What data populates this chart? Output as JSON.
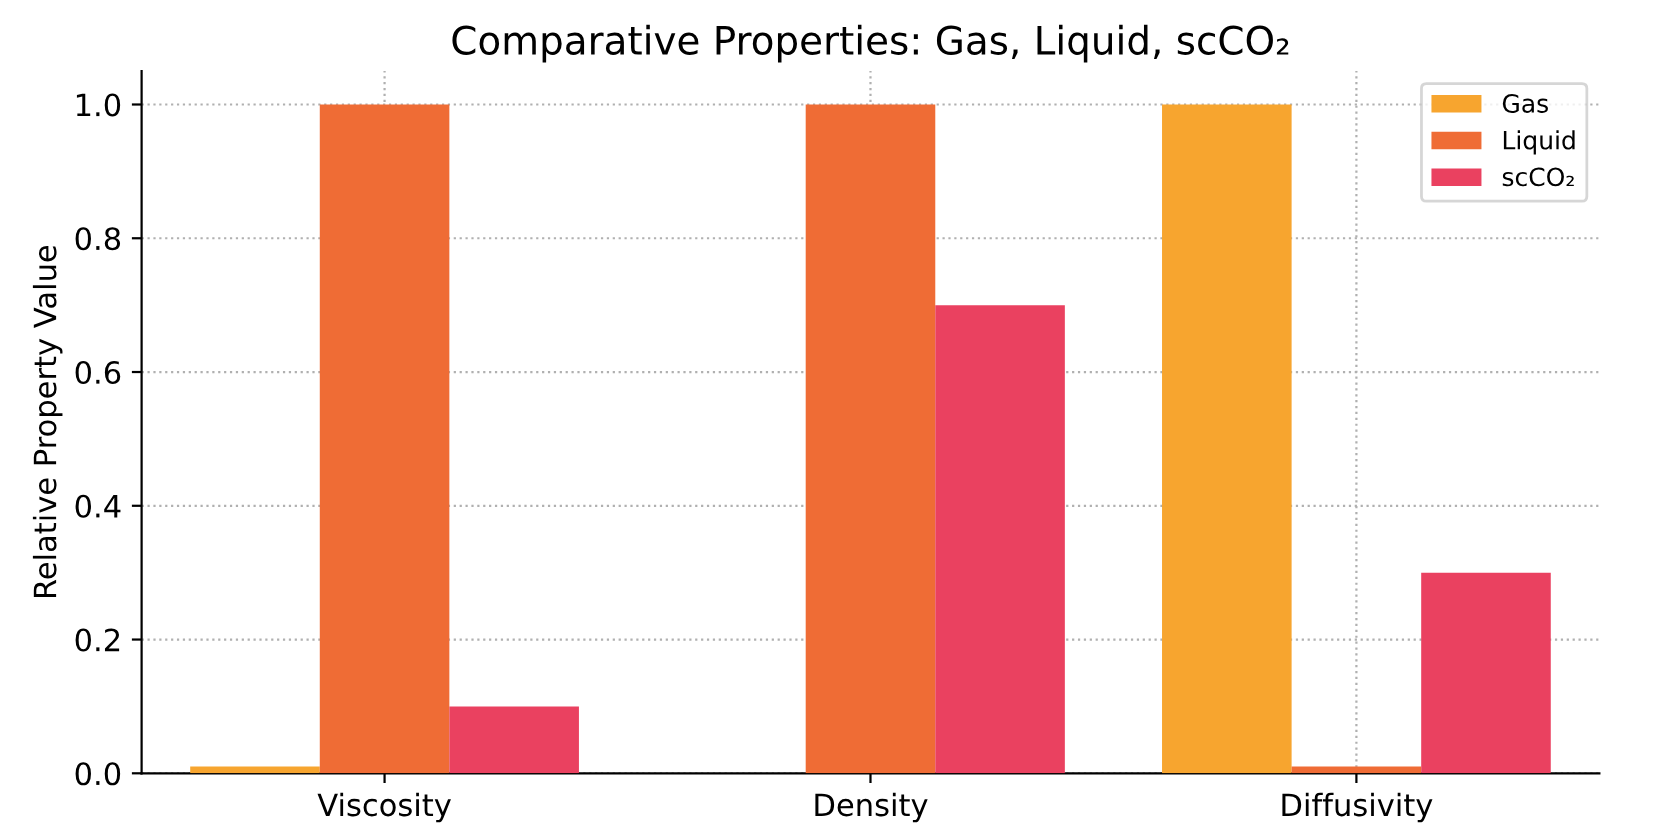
{
  "chart_data": {
    "type": "bar",
    "title": "Comparative Properties: Gas, Liquid, scCO₂",
    "ylabel": "Relative Property Value",
    "categories": [
      "Viscosity",
      "Density",
      "Diffusivity"
    ],
    "series": [
      {
        "name": "Gas",
        "color": "#f7a52f",
        "values": [
          0.01,
          0,
          1.0
        ]
      },
      {
        "name": "Liquid",
        "color": "#ef6c35",
        "values": [
          1.0,
          1.0,
          0.01
        ]
      },
      {
        "name": "scCO₂",
        "color": "#ea4160",
        "values": [
          0.1,
          0.7,
          0.3
        ]
      }
    ],
    "ylim": [
      0,
      1.05
    ],
    "yticks": [
      {
        "value": 0,
        "label": "0.0"
      },
      {
        "value": 0.2,
        "label": "0.2"
      },
      {
        "value": 0.4,
        "label": "0.4"
      },
      {
        "value": 0.6,
        "label": "0.6"
      },
      {
        "value": 0.8,
        "label": "0.8"
      },
      {
        "value": 1.0,
        "label": "1.0"
      }
    ],
    "grid": true,
    "legend": "top right"
  }
}
